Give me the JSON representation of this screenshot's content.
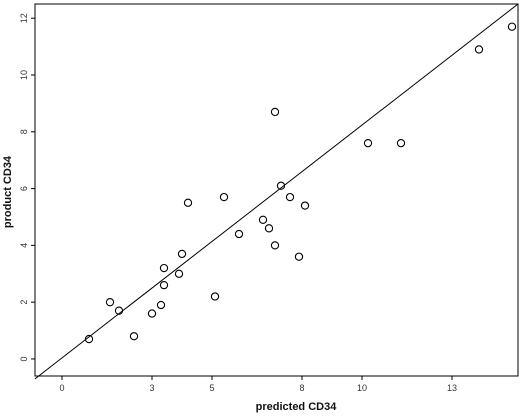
{
  "chart_data": {
    "type": "scatter",
    "title": "",
    "xlabel": "predicted CD34",
    "ylabel": "product CD34",
    "xlim": [
      -0.9,
      15.2
    ],
    "ylim": [
      -0.6,
      12.5
    ],
    "xticks": [
      {
        "value": 0,
        "label": "0"
      },
      {
        "value": 3,
        "label": "3"
      },
      {
        "value": 5,
        "label": "5"
      },
      {
        "value": 8,
        "label": "8"
      },
      {
        "value": 10,
        "label": "10"
      },
      {
        "value": 13,
        "label": "13"
      }
    ],
    "yticks": [
      {
        "value": 0,
        "label": "0"
      },
      {
        "value": 2,
        "label": "2"
      },
      {
        "value": 4,
        "label": "4"
      },
      {
        "value": 6,
        "label": "6"
      },
      {
        "value": 8,
        "label": "8"
      },
      {
        "value": 10,
        "label": "10"
      },
      {
        "value": 12,
        "label": "12"
      }
    ],
    "grid": false,
    "fit_line": {
      "x": [
        -0.9,
        15.2
      ],
      "y": [
        -0.7,
        12.5
      ]
    },
    "points": [
      {
        "x": 0.9,
        "y": 0.7
      },
      {
        "x": 2.4,
        "y": 0.8
      },
      {
        "x": 1.9,
        "y": 1.7
      },
      {
        "x": 1.6,
        "y": 2.0
      },
      {
        "x": 3.0,
        "y": 1.6
      },
      {
        "x": 3.3,
        "y": 1.9
      },
      {
        "x": 3.4,
        "y": 2.6
      },
      {
        "x": 3.4,
        "y": 3.2
      },
      {
        "x": 3.9,
        "y": 3.0
      },
      {
        "x": 4.0,
        "y": 3.7
      },
      {
        "x": 4.2,
        "y": 5.5
      },
      {
        "x": 5.1,
        "y": 2.2
      },
      {
        "x": 5.4,
        "y": 5.7
      },
      {
        "x": 5.9,
        "y": 4.4
      },
      {
        "x": 6.7,
        "y": 4.9
      },
      {
        "x": 6.9,
        "y": 4.6
      },
      {
        "x": 7.1,
        "y": 4.0
      },
      {
        "x": 7.1,
        "y": 8.7
      },
      {
        "x": 7.3,
        "y": 6.1
      },
      {
        "x": 7.6,
        "y": 5.7
      },
      {
        "x": 7.9,
        "y": 3.6
      },
      {
        "x": 8.1,
        "y": 5.4
      },
      {
        "x": 10.2,
        "y": 7.6
      },
      {
        "x": 11.3,
        "y": 7.6
      },
      {
        "x": 13.9,
        "y": 10.9
      },
      {
        "x": 15.0,
        "y": 11.7
      }
    ],
    "colors": {
      "background": "#ffffff",
      "frame": "#000000",
      "marker": "#000000",
      "line": "#000000"
    }
  }
}
